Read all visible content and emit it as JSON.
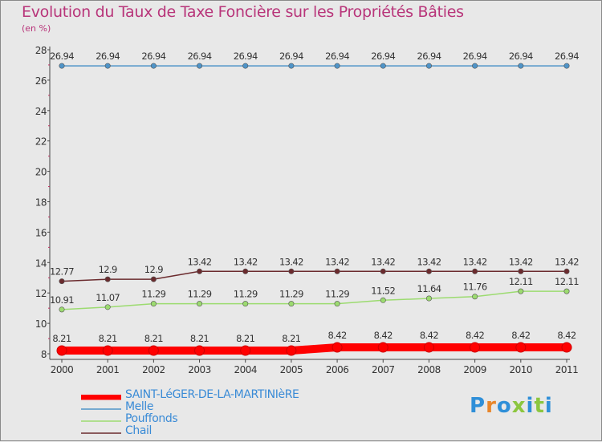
{
  "chart_data": {
    "type": "line",
    "title": "Evolution du Taux de Taxe Foncière sur les Propriétés Bâties",
    "ylabel": "(en %)",
    "xlabel": "",
    "x": [
      "2000",
      "2001",
      "2002",
      "2003",
      "2004",
      "2005",
      "2006",
      "2007",
      "2008",
      "2009",
      "2010",
      "2011"
    ],
    "ylim": [
      8,
      28
    ],
    "yticks": [
      8,
      10,
      12,
      14,
      16,
      18,
      20,
      22,
      24,
      26,
      28
    ],
    "grid": false,
    "legend_position": "bottom-left",
    "series": [
      {
        "name": "SAINT-LéGER-DE-LA-MARTINIèRE",
        "color": "#ff0000",
        "values": [
          8.21,
          8.21,
          8.21,
          8.21,
          8.21,
          8.21,
          8.42,
          8.42,
          8.42,
          8.42,
          8.42,
          8.42
        ],
        "labels": [
          "8.21",
          "8.21",
          "8.21",
          "8.21",
          "8.21",
          "8.21",
          "8.42",
          "8.42",
          "8.42",
          "8.42",
          "8.42",
          "8.42"
        ]
      },
      {
        "name": "Melle",
        "color": "#4f94c8",
        "values": [
          26.94,
          26.94,
          26.94,
          26.94,
          26.94,
          26.94,
          26.94,
          26.94,
          26.94,
          26.94,
          26.94,
          26.94
        ],
        "labels": [
          "26.94",
          "26.94",
          "26.94",
          "26.94",
          "26.94",
          "26.94",
          "26.94",
          "26.94",
          "26.94",
          "26.94",
          "26.94",
          "26.94"
        ]
      },
      {
        "name": "Pouffonds",
        "color": "#9cdb70",
        "values": [
          10.91,
          11.07,
          11.29,
          11.29,
          11.29,
          11.29,
          11.29,
          11.52,
          11.64,
          11.76,
          12.11,
          12.11
        ],
        "labels": [
          "10.91",
          "11.07",
          "11.29",
          "11.29",
          "11.29",
          "11.29",
          "11.29",
          "11.52",
          "11.64",
          "11.76",
          "12.11",
          "12.11"
        ]
      },
      {
        "name": "Chail",
        "color": "#6b2b2e",
        "values": [
          12.77,
          12.9,
          12.9,
          13.42,
          13.42,
          13.42,
          13.42,
          13.42,
          13.42,
          13.42,
          13.42,
          13.42
        ],
        "labels": [
          "12.77",
          "12.9",
          "12.9",
          "13.42",
          "13.42",
          "13.42",
          "13.42",
          "13.42",
          "13.42",
          "13.42",
          "13.42",
          "13.42"
        ]
      }
    ]
  },
  "logo": {
    "letters": [
      "P",
      "r",
      "o",
      "x",
      "i",
      "t",
      "i"
    ]
  }
}
